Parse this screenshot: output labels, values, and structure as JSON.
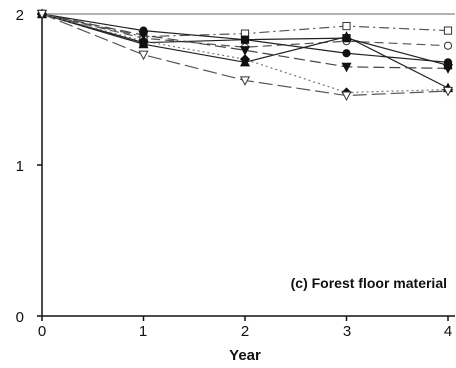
{
  "chart_data": {
    "type": "line",
    "title": "",
    "annotation": "(c) Forest floor material",
    "xlabel": "Year",
    "ylabel": "",
    "x": [
      0,
      1,
      2,
      3,
      4
    ],
    "x_ticks": [
      "0",
      "1",
      "2",
      "3",
      "4"
    ],
    "y_ticks": [
      "0",
      "1",
      "2"
    ],
    "xlim": [
      0,
      4
    ],
    "ylim": [
      0,
      2
    ],
    "grid": false,
    "reference_line_y": 2,
    "reference_line_color": "#b3b3b3",
    "series": [
      {
        "marker": "open-square",
        "dash": "10 4 2 4",
        "color": "#555555",
        "values": [
          2.0,
          1.85,
          1.87,
          1.92,
          1.89
        ]
      },
      {
        "marker": "open-circle",
        "dash": "9 5",
        "color": "#555555",
        "values": [
          2.0,
          1.84,
          1.78,
          1.82,
          1.79
        ]
      },
      {
        "marker": "filled-circle",
        "dash": "",
        "color": "#222222",
        "values": [
          2.0,
          1.89,
          1.83,
          1.74,
          1.68
        ]
      },
      {
        "marker": "filled-square",
        "dash": "",
        "color": "#222222",
        "values": [
          2.0,
          1.81,
          1.83,
          1.84,
          1.66
        ]
      },
      {
        "marker": "filled-triangle-up",
        "dash": "",
        "color": "#222222",
        "values": [
          2.0,
          1.8,
          1.68,
          1.85,
          1.51
        ]
      },
      {
        "marker": "filled-triangle-down",
        "dash": "11 5",
        "color": "#444444",
        "values": [
          2.0,
          1.86,
          1.76,
          1.65,
          1.64
        ]
      },
      {
        "marker": "filled-diamond",
        "dash": "2 3",
        "color": "#777777",
        "values": [
          2.0,
          1.82,
          1.7,
          1.48,
          1.5
        ]
      },
      {
        "marker": "open-triangle-down",
        "dash": "14 5",
        "color": "#555555",
        "values": [
          2.0,
          1.73,
          1.56,
          1.46,
          1.49
        ]
      }
    ]
  }
}
